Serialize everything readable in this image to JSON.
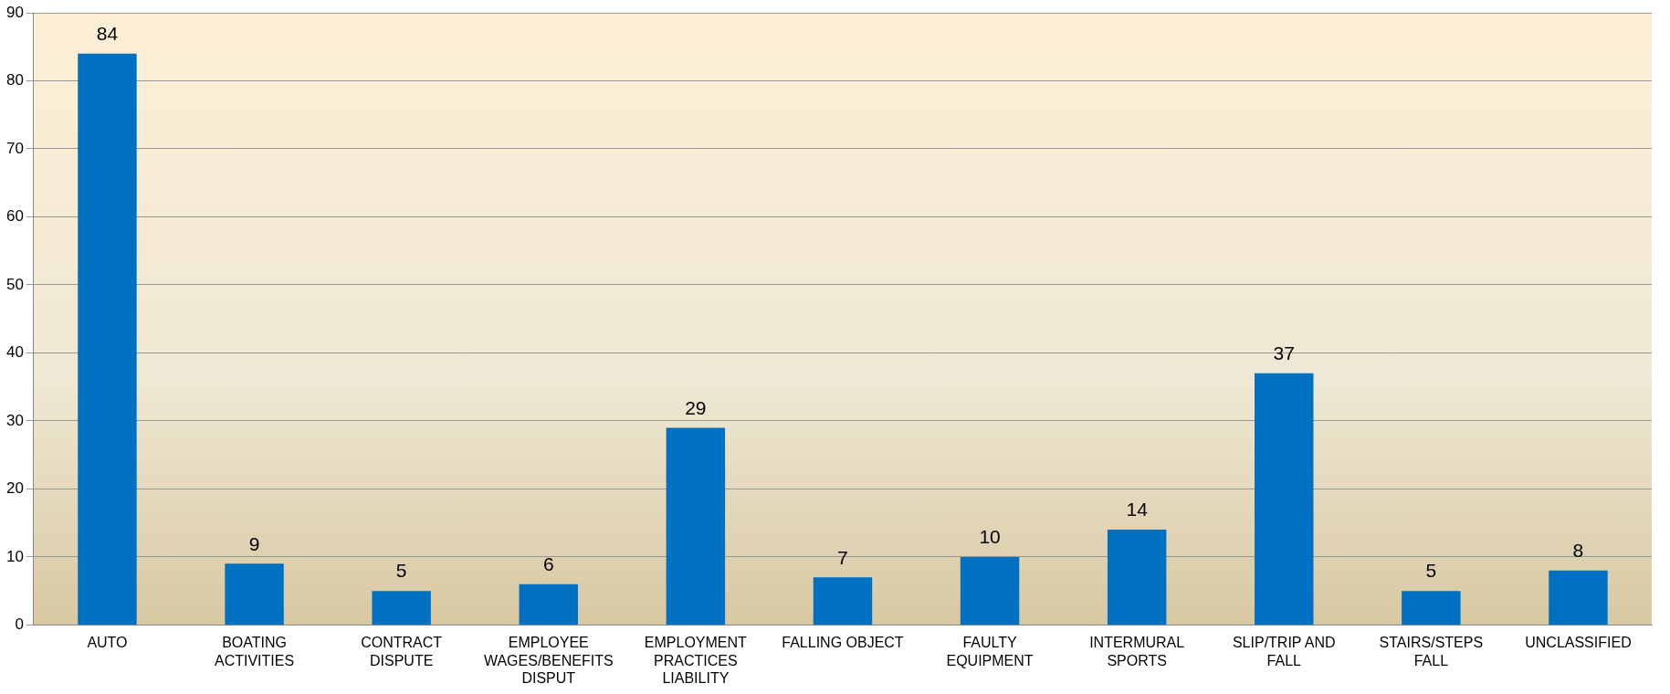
{
  "chart_data": {
    "type": "bar",
    "categories": [
      "AUTO",
      "BOATING ACTIVITIES",
      "CONTRACT DISPUTE",
      "EMPLOYEE WAGES/BENEFITS DISPUT",
      "EMPLOYMENT PRACTICES LIABILITY",
      "FALLING OBJECT",
      "FAULTY EQUIPMENT",
      "INTERMURAL SPORTS",
      "SLIP/TRIP AND FALL",
      "STAIRS/STEPS FALL",
      "UNCLASSIFIED"
    ],
    "values": [
      84,
      9,
      5,
      6,
      29,
      7,
      10,
      14,
      37,
      5,
      8
    ],
    "color": "#0070c0",
    "ylim": [
      0,
      90
    ],
    "yticks": [
      0,
      10,
      20,
      30,
      40,
      50,
      60,
      70,
      80,
      90
    ],
    "grid": "y",
    "legend": false,
    "data_labels": true
  }
}
